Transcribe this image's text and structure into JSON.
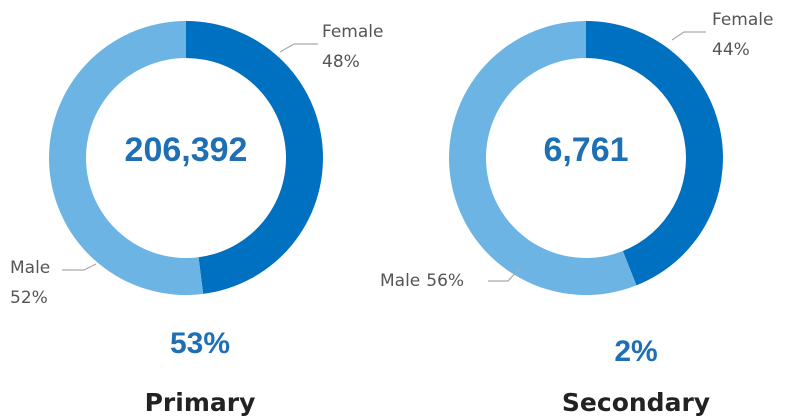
{
  "chart_data": [
    {
      "type": "pie",
      "donut": true,
      "title": "Primary",
      "center_label": "206,392",
      "annotation": "53%",
      "categories": [
        "Female",
        "Male"
      ],
      "values": [
        48,
        52
      ],
      "value_labels": [
        "48%",
        "52%"
      ],
      "colors": [
        "#0070c0",
        "#6cb4e4"
      ]
    },
    {
      "type": "pie",
      "donut": true,
      "title": "Secondary",
      "center_label": "6,761",
      "annotation": "2%",
      "categories": [
        "Female",
        "Male"
      ],
      "values": [
        44,
        56
      ],
      "value_labels": [
        "44%",
        "56%"
      ],
      "colors": [
        "#0070c0",
        "#6cb4e4"
      ]
    }
  ]
}
